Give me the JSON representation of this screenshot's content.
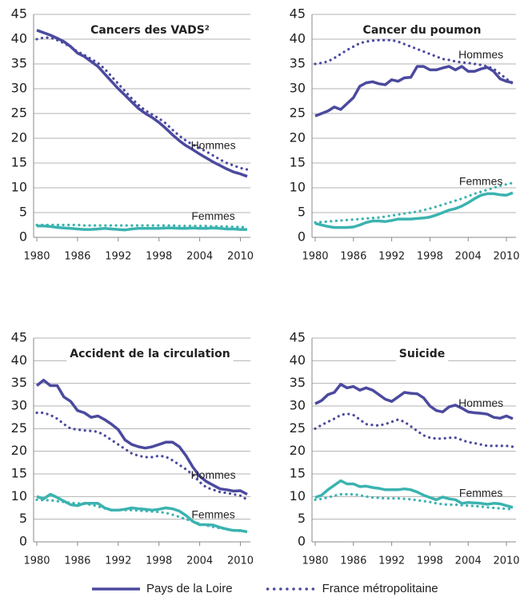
{
  "chart_data": [
    {
      "type": "line",
      "title": "Cancers des VADS²",
      "x": [
        1980,
        1981,
        1982,
        1983,
        1984,
        1985,
        1986,
        1987,
        1988,
        1989,
        1990,
        1991,
        1992,
        1993,
        1994,
        1995,
        1996,
        1997,
        1998,
        1999,
        2000,
        2001,
        2002,
        2003,
        2004,
        2005,
        2006,
        2007,
        2008,
        2009,
        2010,
        2011
      ],
      "xlim": [
        1980,
        2011
      ],
      "xticks": [
        1980,
        1986,
        1992,
        1998,
        2004,
        2010
      ],
      "ylim": [
        0,
        45
      ],
      "yticks": [
        0,
        5,
        10,
        15,
        20,
        25,
        30,
        35,
        40,
        45
      ],
      "grid": true,
      "groups": [
        {
          "label": "Hommes",
          "color": "#4b4a9e",
          "series": [
            {
              "dashed": false,
              "values": [
                41.8,
                41.3,
                40.8,
                40.2,
                39.5,
                38.5,
                37.2,
                36.5,
                35.5,
                34.5,
                33,
                31.5,
                30,
                28.7,
                27.3,
                26,
                25,
                24.2,
                23.2,
                22,
                20.7,
                19.5,
                18.5,
                17.7,
                16.8,
                16,
                15.2,
                14.5,
                13.8,
                13.2,
                12.8,
                12.3
              ]
            },
            {
              "dashed": true,
              "values": [
                40,
                40.3,
                40.3,
                39.8,
                39.2,
                38.4,
                37.5,
                36.8,
                36,
                35.2,
                34,
                32.5,
                31,
                29.5,
                28,
                26.7,
                25.6,
                24.8,
                24,
                23,
                21.7,
                20.5,
                19.5,
                18.7,
                18,
                17.3,
                16.5,
                15.7,
                15,
                14.5,
                14,
                13.7
              ]
            }
          ]
        },
        {
          "label": "Femmes",
          "color": "#3bb3b0",
          "series": [
            {
              "dashed": false,
              "values": [
                2.3,
                2.3,
                2.2,
                2.0,
                1.9,
                1.8,
                1.7,
                1.6,
                1.6,
                1.7,
                1.8,
                1.7,
                1.6,
                1.5,
                1.7,
                1.8,
                1.8,
                1.8,
                1.8,
                1.9,
                1.9,
                1.8,
                1.8,
                1.9,
                1.8,
                1.8,
                1.9,
                1.8,
                1.7,
                1.7,
                1.6,
                1.6
              ]
            },
            {
              "dashed": true,
              "values": [
                2.5,
                2.5,
                2.5,
                2.5,
                2.5,
                2.5,
                2.5,
                2.4,
                2.4,
                2.4,
                2.4,
                2.4,
                2.4,
                2.4,
                2.4,
                2.4,
                2.4,
                2.4,
                2.4,
                2.4,
                2.4,
                2.3,
                2.3,
                2.3,
                2.3,
                2.3,
                2.2,
                2.2,
                2.2,
                2.1,
                2.1,
                2.0
              ]
            }
          ]
        }
      ]
    },
    {
      "type": "line",
      "title": "Cancer du poumon",
      "x": [
        1980,
        1981,
        1982,
        1983,
        1984,
        1985,
        1986,
        1987,
        1988,
        1989,
        1990,
        1991,
        1992,
        1993,
        1994,
        1995,
        1996,
        1997,
        1998,
        1999,
        2000,
        2001,
        2002,
        2003,
        2004,
        2005,
        2006,
        2007,
        2008,
        2009,
        2010,
        2011
      ],
      "xlim": [
        1980,
        2011
      ],
      "xticks": [
        1980,
        1986,
        1992,
        1998,
        2004,
        2010
      ],
      "ylim": [
        0,
        45
      ],
      "yticks": [
        0,
        5,
        10,
        15,
        20,
        25,
        30,
        35,
        40,
        45
      ],
      "grid": true,
      "groups": [
        {
          "label": "Hommes",
          "color": "#4b4a9e",
          "series": [
            {
              "dashed": false,
              "values": [
                24.5,
                25,
                25.5,
                26.3,
                25.8,
                27,
                28.2,
                30.5,
                31.2,
                31.4,
                31,
                30.8,
                31.8,
                31.5,
                32.2,
                32.3,
                34.5,
                34.5,
                33.8,
                33.8,
                34.2,
                34.5,
                33.8,
                34.5,
                33.5,
                33.5,
                34,
                34.3,
                33.5,
                32,
                31.5,
                31.2
              ]
            },
            {
              "dashed": true,
              "values": [
                35,
                35.2,
                35.5,
                36.2,
                37,
                37.8,
                38.5,
                39.2,
                39.5,
                39.7,
                39.8,
                39.8,
                39.8,
                39.5,
                39,
                38.5,
                38,
                37.5,
                37,
                36.5,
                36,
                35.8,
                35.5,
                35.3,
                35.2,
                35,
                34.8,
                34.5,
                34,
                33,
                32,
                31
              ]
            }
          ]
        },
        {
          "label": "Femmes",
          "color": "#3bb3b0",
          "series": [
            {
              "dashed": false,
              "values": [
                2.8,
                2.5,
                2.2,
                2,
                2,
                2,
                2.1,
                2.5,
                3,
                3.3,
                3.3,
                3.2,
                3.4,
                3.7,
                3.7,
                3.7,
                3.8,
                3.9,
                4.1,
                4.5,
                5,
                5.5,
                5.8,
                6.3,
                7,
                7.8,
                8.5,
                8.8,
                8.8,
                8.6,
                8.5,
                9
              ]
            },
            {
              "dashed": true,
              "values": [
                3,
                3.1,
                3.2,
                3.3,
                3.4,
                3.5,
                3.6,
                3.7,
                3.8,
                3.9,
                4,
                4.2,
                4.4,
                4.6,
                4.8,
                5,
                5.2,
                5.5,
                5.8,
                6.2,
                6.6,
                7,
                7.4,
                7.8,
                8.3,
                8.8,
                9.2,
                9.6,
                10,
                10.4,
                10.7,
                11
              ]
            }
          ]
        }
      ]
    },
    {
      "type": "line",
      "title": "Accident de la circulation",
      "x": [
        1980,
        1981,
        1982,
        1983,
        1984,
        1985,
        1986,
        1987,
        1988,
        1989,
        1990,
        1991,
        1992,
        1993,
        1994,
        1995,
        1996,
        1997,
        1998,
        1999,
        2000,
        2001,
        2002,
        2003,
        2004,
        2005,
        2006,
        2007,
        2008,
        2009,
        2010,
        2011
      ],
      "xlim": [
        1980,
        2011
      ],
      "xticks": [
        1980,
        1986,
        1992,
        1998,
        2004,
        2010
      ],
      "ylim": [
        0,
        45
      ],
      "yticks": [
        0,
        5,
        10,
        15,
        20,
        25,
        30,
        35,
        40,
        45
      ],
      "grid": true,
      "groups": [
        {
          "label": "Hommes",
          "color": "#4b4a9e",
          "series": [
            {
              "dashed": false,
              "values": [
                34.5,
                35.7,
                34.5,
                34.5,
                32,
                31,
                29,
                28.5,
                27.5,
                27.8,
                27,
                26,
                24.8,
                22.5,
                21.5,
                21,
                20.7,
                21,
                21.5,
                22,
                22,
                21,
                19,
                16.5,
                14.5,
                13.3,
                12.5,
                11.7,
                11.5,
                11.2,
                11.3,
                10.5
              ]
            },
            {
              "dashed": true,
              "values": [
                28.5,
                28.5,
                28,
                27.2,
                26,
                25,
                24.8,
                24.6,
                24.5,
                24.3,
                23.5,
                22.5,
                21.5,
                20.5,
                19.5,
                19,
                18.7,
                18.7,
                19,
                18.8,
                18,
                17,
                16,
                14.8,
                13.2,
                12,
                11.5,
                11,
                10.8,
                10.5,
                10.2,
                9.3
              ]
            }
          ]
        },
        {
          "label": "Femmes",
          "color": "#3bb3b0",
          "series": [
            {
              "dashed": false,
              "values": [
                10,
                9.5,
                10.5,
                9.8,
                9,
                8.2,
                8,
                8.5,
                8.5,
                8.5,
                7.5,
                7,
                7,
                7.2,
                7.5,
                7.3,
                7.2,
                7,
                7.2,
                7.5,
                7.3,
                6.8,
                5.8,
                4.5,
                3.8,
                3.8,
                3.7,
                3.2,
                2.8,
                2.5,
                2.5,
                2.2
              ]
            },
            {
              "dashed": true,
              "values": [
                9.3,
                9.2,
                9.2,
                9,
                8.8,
                8.6,
                8.5,
                8.4,
                8.2,
                7.8,
                7.4,
                7.1,
                7,
                7,
                7,
                6.9,
                6.8,
                6.7,
                6.6,
                6.4,
                6,
                5.5,
                5,
                4.5,
                4,
                3.6,
                3.3,
                3,
                2.8,
                2.6,
                2.4,
                2.3
              ]
            }
          ]
        }
      ]
    },
    {
      "type": "line",
      "title": "Suicide",
      "x": [
        1980,
        1981,
        1982,
        1983,
        1984,
        1985,
        1986,
        1987,
        1988,
        1989,
        1990,
        1991,
        1992,
        1993,
        1994,
        1995,
        1996,
        1997,
        1998,
        1999,
        2000,
        2001,
        2002,
        2003,
        2004,
        2005,
        2006,
        2007,
        2008,
        2009,
        2010,
        2011
      ],
      "xlim": [
        1980,
        2011
      ],
      "xticks": [
        1980,
        1986,
        1992,
        1998,
        2004,
        2010
      ],
      "ylim": [
        0,
        45
      ],
      "yticks": [
        0,
        5,
        10,
        15,
        20,
        25,
        30,
        35,
        40,
        45
      ],
      "grid": true,
      "groups": [
        {
          "label": "Hommes",
          "color": "#4b4a9e",
          "series": [
            {
              "dashed": false,
              "values": [
                30.5,
                31.2,
                32.5,
                33,
                34.8,
                34,
                34.3,
                33.5,
                34,
                33.5,
                32.5,
                31.5,
                31,
                32,
                33,
                32.8,
                32.7,
                31.8,
                30,
                29,
                28.7,
                29.8,
                30.2,
                29.5,
                28.7,
                28.5,
                28.4,
                28.2,
                27.5,
                27.3,
                27.8,
                27.2
              ]
            },
            {
              "dashed": true,
              "values": [
                25,
                25.8,
                26.5,
                27.2,
                28,
                28.3,
                28,
                27,
                26,
                25.8,
                25.7,
                26,
                26.5,
                27,
                26.5,
                25.5,
                24.5,
                23.5,
                23,
                22.8,
                22.8,
                23,
                23,
                22.5,
                22,
                21.8,
                21.5,
                21.2,
                21.2,
                21.2,
                21.2,
                21
              ]
            }
          ]
        },
        {
          "label": "Femmes",
          "color": "#3bb3b0",
          "series": [
            {
              "dashed": false,
              "values": [
                9.8,
                10.3,
                11.5,
                12.5,
                13.5,
                12.8,
                12.8,
                12.2,
                12.3,
                12,
                11.8,
                11.5,
                11.5,
                11.5,
                11.7,
                11.5,
                11,
                10.3,
                9.8,
                9.3,
                9.9,
                9.5,
                9.3,
                8.5,
                8.7,
                8.6,
                8.5,
                8.3,
                8.5,
                8.4,
                8,
                7.6
              ]
            },
            {
              "dashed": true,
              "values": [
                9.3,
                9.5,
                9.8,
                10.2,
                10.5,
                10.5,
                10.5,
                10.3,
                10,
                9.8,
                9.7,
                9.6,
                9.6,
                9.6,
                9.5,
                9.4,
                9.2,
                9,
                8.8,
                8.5,
                8.3,
                8.2,
                8.2,
                8.1,
                8,
                7.9,
                7.8,
                7.6,
                7.5,
                7.4,
                7.3,
                7.2
              ]
            }
          ]
        }
      ]
    }
  ],
  "legend": [
    {
      "name": "Pays de la Loire",
      "dashed": false
    },
    {
      "name": "France métropolitaine",
      "dashed": true
    }
  ]
}
